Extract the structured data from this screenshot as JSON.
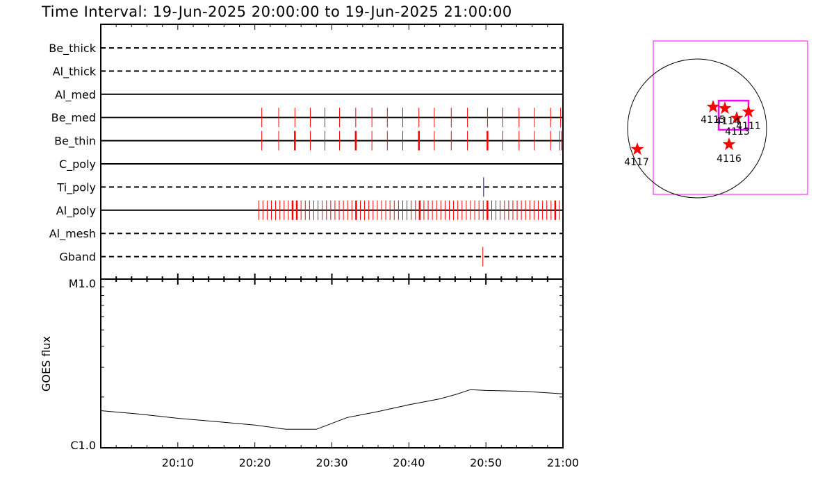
{
  "title": "Time Interval: 19-Jun-2025 20:00:00 to 19-Jun-2025 21:00:00",
  "chart_data": [
    {
      "type": "timeline",
      "x_range_minutes": [
        0,
        60
      ],
      "filters": [
        {
          "name": "Be_thick",
          "style": "dashed"
        },
        {
          "name": "Al_thick",
          "style": "dashed"
        },
        {
          "name": "Al_med",
          "style": "solid"
        },
        {
          "name": "Be_med",
          "style": "solid"
        },
        {
          "name": "Be_thin",
          "style": "solid"
        },
        {
          "name": "C_poly",
          "style": "solid"
        },
        {
          "name": "Ti_poly",
          "style": "dashed"
        },
        {
          "name": "Al_poly",
          "style": "solid"
        },
        {
          "name": "Al_mesh",
          "style": "dashed"
        },
        {
          "name": "Gband",
          "style": "dashed"
        }
      ],
      "observations": {
        "Be_med": {
          "color": "#ff0000",
          "minutes": [
            20.9,
            23.1,
            25.2,
            27.2,
            29.1,
            31.0,
            33.1,
            35.2,
            37.2,
            39.2,
            41.3,
            43.3,
            45.5,
            47.6,
            50.2,
            52.2,
            54.3,
            56.3,
            58.4,
            59.7
          ]
        },
        "Be_thin": {
          "color": "#ff0000",
          "minutes": [
            20.9,
            23.1,
            25.2,
            27.2,
            29.1,
            31.0,
            33.1,
            35.2,
            37.2,
            39.2,
            41.3,
            43.3,
            45.5,
            47.6,
            50.2,
            52.2,
            54.3,
            56.3,
            58.4,
            59.6,
            59.8
          ],
          "long": [
            25.2,
            33.1,
            41.3,
            50.2
          ]
        },
        "Ti_poly": {
          "color": "#0000aa",
          "minutes": [
            49.7
          ]
        },
        "Al_poly": {
          "color": "#ff0000",
          "start": 20.5,
          "end": 60.0,
          "step": 0.55,
          "long": [
            24.9,
            25.2,
            33.1,
            41.3,
            50.2,
            59.0
          ]
        },
        "Gband": {
          "color": "#ff0000",
          "minutes": [
            49.6
          ]
        }
      }
    },
    {
      "type": "line",
      "ylabel": "GOES flux",
      "ytick_labels": [
        "M1.0",
        "C1.0"
      ],
      "x_tick_labels": [
        "20:10",
        "20:20",
        "20:30",
        "20:40",
        "20:50",
        "21:00"
      ],
      "y_scale": "log",
      "y_frac_range": [
        0,
        1
      ],
      "series": [
        {
          "x": [
            0,
            5,
            10,
            15,
            20,
            24,
            28,
            32,
            36,
            40,
            44,
            46,
            48,
            50,
            55,
            60
          ],
          "y": [
            0.22,
            0.2,
            0.175,
            0.155,
            0.135,
            0.11,
            0.11,
            0.18,
            0.215,
            0.255,
            0.29,
            0.315,
            0.345,
            0.34,
            0.335,
            0.32
          ]
        }
      ]
    }
  ],
  "map": {
    "regions": [
      {
        "label": "4117"
      },
      {
        "label": "4116"
      },
      {
        "label": "4113"
      },
      {
        "label": "4111"
      },
      {
        "label": "4115"
      },
      {
        "label": "4114"
      }
    ]
  },
  "colors": {
    "observation": "#ff0000",
    "ti_obs": "#0000aa",
    "fov": "#ff00ff",
    "star": "#ff0000"
  }
}
